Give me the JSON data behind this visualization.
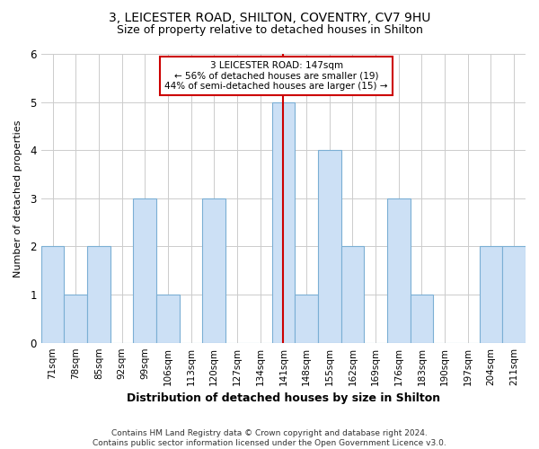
{
  "title": "3, LEICESTER ROAD, SHILTON, COVENTRY, CV7 9HU",
  "subtitle": "Size of property relative to detached houses in Shilton",
  "xlabel": "Distribution of detached houses by size in Shilton",
  "ylabel": "Number of detached properties",
  "categories": [
    "71sqm",
    "78sqm",
    "85sqm",
    "92sqm",
    "99sqm",
    "106sqm",
    "113sqm",
    "120sqm",
    "127sqm",
    "134sqm",
    "141sqm",
    "148sqm",
    "155sqm",
    "162sqm",
    "169sqm",
    "176sqm",
    "183sqm",
    "190sqm",
    "197sqm",
    "204sqm",
    "211sqm"
  ],
  "values": [
    2,
    1,
    2,
    0,
    3,
    1,
    0,
    3,
    0,
    0,
    5,
    1,
    4,
    2,
    0,
    3,
    1,
    0,
    0,
    2,
    2
  ],
  "bar_fill_color": "#cce0f5",
  "bar_edge_color": "#7bafd4",
  "highlight_index": 10,
  "highlight_line_color": "#cc0000",
  "annotation_text": "3 LEICESTER ROAD: 147sqm\n← 56% of detached houses are smaller (19)\n44% of semi-detached houses are larger (15) →",
  "annotation_box_color": "#ffffff",
  "annotation_box_edge_color": "#cc0000",
  "ylim": [
    0,
    6
  ],
  "yticks": [
    0,
    1,
    2,
    3,
    4,
    5,
    6
  ],
  "footnote": "Contains HM Land Registry data © Crown copyright and database right 2024.\nContains public sector information licensed under the Open Government Licence v3.0.",
  "bg_color": "#ffffff",
  "grid_color": "#cccccc",
  "title_fontsize": 10,
  "subtitle_fontsize": 9,
  "xlabel_fontsize": 9,
  "ylabel_fontsize": 8,
  "tick_fontsize": 7.5,
  "footnote_fontsize": 6.5
}
